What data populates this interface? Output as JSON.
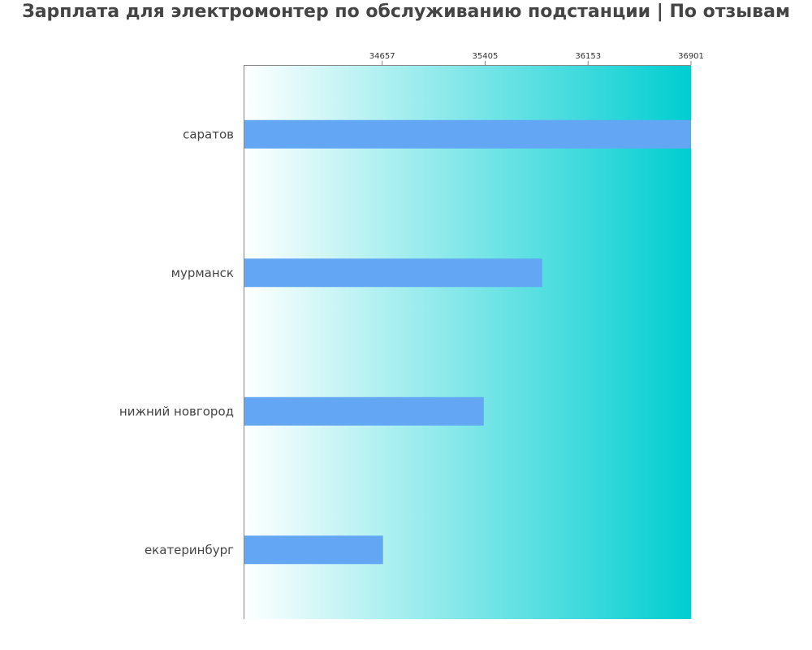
{
  "title": "Зарплата для электромонтер по обслуживанию подстанции | По отзывам",
  "colors": {
    "bar": "#63a7f4",
    "background_gradient_start": "#ffffff",
    "background_gradient_end": "#00ced1",
    "axis": "#888888",
    "title": "#444444",
    "label": "#444444"
  },
  "chart_data": {
    "type": "bar",
    "orientation": "horizontal",
    "title": "Зарплата для электромонтер по обслуживанию подстанции | По отзывам",
    "xlabel": "",
    "ylabel": "",
    "categories": [
      "саратов",
      "мурманск",
      "нижний новгород",
      "екатеринбург"
    ],
    "values": [
      36901,
      35820,
      35395,
      34663
    ],
    "xlim": [
      33650,
      36901
    ],
    "x_ticks": [
      34657,
      35405,
      36153,
      36901
    ],
    "x_tick_labels": [
      "34657",
      "35405",
      "36153",
      "36901"
    ],
    "x_axis_position": "top",
    "grid": false,
    "legend": "none"
  }
}
